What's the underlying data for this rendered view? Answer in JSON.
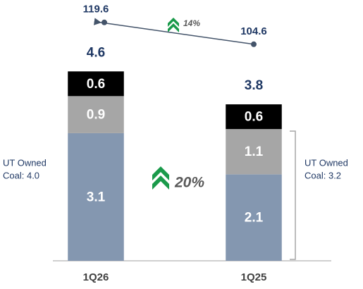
{
  "chart_data": {
    "type": "stacked-bar",
    "categories": [
      "1Q26",
      "1Q25"
    ],
    "series": [
      {
        "name": null,
        "color": "#8497b0",
        "values": [
          3.1,
          2.1
        ]
      },
      {
        "name": null,
        "color": "#a6a6a6",
        "values": [
          0.9,
          1.1
        ]
      },
      {
        "name": null,
        "color": "#000000",
        "values": [
          0.6,
          0.6
        ]
      }
    ],
    "totals": [
      4.6,
      3.8
    ],
    "line": {
      "axis": "y2",
      "color": "#44546a",
      "values": [
        119.6,
        104.6
      ]
    },
    "ylim": [
      0,
      6.3
    ],
    "y2lim": [
      -44,
      134
    ],
    "annotations": {
      "line_change": "14%",
      "bar_change": "20%",
      "left_bracket": [
        "UT Owned",
        "Coal: 4.0"
      ],
      "right_bracket": [
        "UT Owned",
        "Coal: 3.2"
      ]
    }
  }
}
